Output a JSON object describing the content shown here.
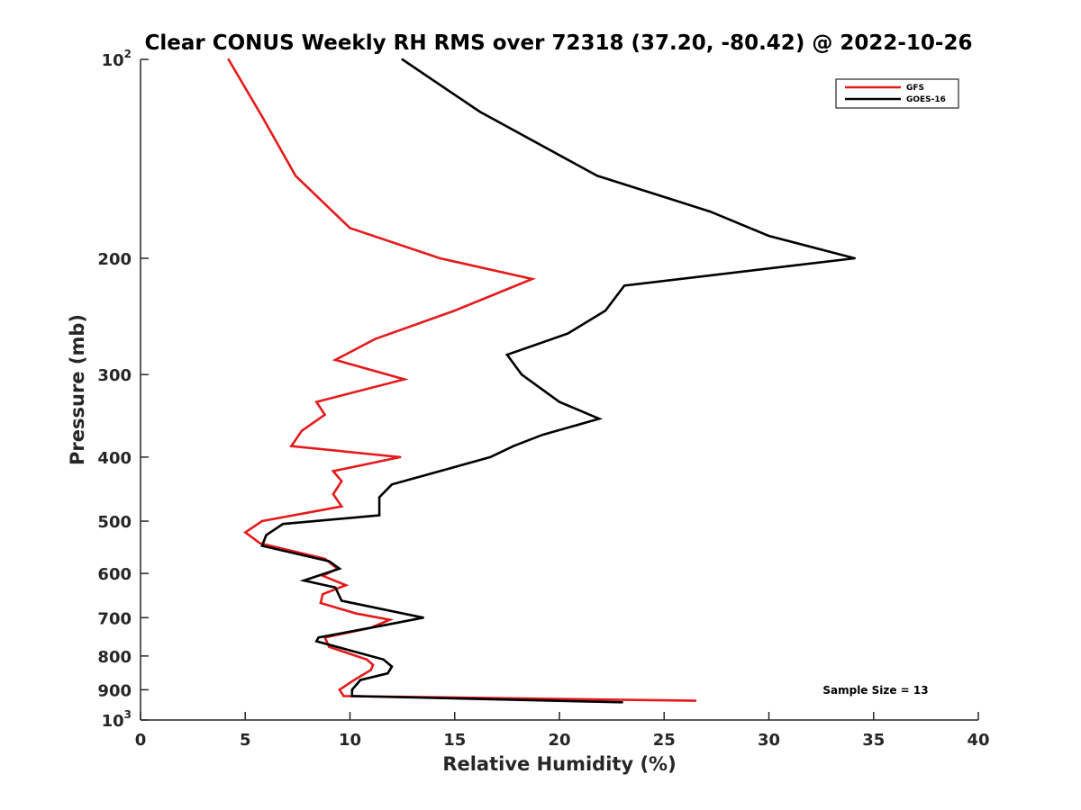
{
  "chart_data": {
    "type": "line",
    "title": "Clear CONUS Weekly RH RMS over 72318 (37.20, -80.42) @ 2022-10-26",
    "xlabel": "Relative Humidity (%)",
    "ylabel": "Pressure (mb)",
    "xlim": [
      0,
      40
    ],
    "ylim": [
      100,
      1000
    ],
    "y_scale": "log",
    "y_reversed": true,
    "x_ticks": [
      "0",
      "5",
      "10",
      "15",
      "20",
      "25",
      "30",
      "35",
      "40"
    ],
    "y_ticks": [
      {
        "value": 100,
        "base": "10",
        "exp": "2"
      },
      {
        "value": 200,
        "base": "200",
        "exp": ""
      },
      {
        "value": 300,
        "base": "300",
        "exp": ""
      },
      {
        "value": 400,
        "base": "400",
        "exp": ""
      },
      {
        "value": 500,
        "base": "500",
        "exp": ""
      },
      {
        "value": 600,
        "base": "600",
        "exp": ""
      },
      {
        "value": 700,
        "base": "700",
        "exp": ""
      },
      {
        "value": 800,
        "base": "800",
        "exp": ""
      },
      {
        "value": 900,
        "base": "900",
        "exp": ""
      },
      {
        "value": 1000,
        "base": "10",
        "exp": "3"
      }
    ],
    "legend_position": "top-right",
    "annotation": "Sample Size = 13",
    "series": [
      {
        "name": "GFS",
        "color": "#e41a1c",
        "points": [
          [
            4.2,
            100
          ],
          [
            5.8,
            122
          ],
          [
            7.4,
            150
          ],
          [
            10.0,
            180
          ],
          [
            14.3,
            200
          ],
          [
            18.7,
            215
          ],
          [
            15.0,
            240
          ],
          [
            11.2,
            265
          ],
          [
            9.3,
            285
          ],
          [
            12.6,
            305
          ],
          [
            8.4,
            330
          ],
          [
            8.8,
            345
          ],
          [
            7.7,
            365
          ],
          [
            7.2,
            385
          ],
          [
            12.4,
            400
          ],
          [
            9.2,
            420
          ],
          [
            9.6,
            435
          ],
          [
            9.2,
            455
          ],
          [
            9.6,
            475
          ],
          [
            5.8,
            500
          ],
          [
            5.0,
            520
          ],
          [
            5.7,
            540
          ],
          [
            8.8,
            570
          ],
          [
            9.4,
            590
          ],
          [
            8.7,
            605
          ],
          [
            9.8,
            625
          ],
          [
            8.7,
            645
          ],
          [
            8.6,
            665
          ],
          [
            10.3,
            690
          ],
          [
            11.9,
            705
          ],
          [
            11.0,
            725
          ],
          [
            8.8,
            750
          ],
          [
            9.0,
            775
          ],
          [
            10.8,
            810
          ],
          [
            11.1,
            825
          ],
          [
            11.0,
            840
          ],
          [
            10.2,
            870
          ],
          [
            9.5,
            900
          ],
          [
            9.7,
            920
          ],
          [
            26.5,
            935
          ]
        ]
      },
      {
        "name": "GOES-16",
        "color": "#000000",
        "points": [
          [
            12.5,
            100
          ],
          [
            16.2,
            120
          ],
          [
            21.8,
            150
          ],
          [
            27.2,
            170
          ],
          [
            30.0,
            185
          ],
          [
            34.1,
            200
          ],
          [
            23.1,
            220
          ],
          [
            22.2,
            240
          ],
          [
            20.4,
            260
          ],
          [
            17.5,
            280
          ],
          [
            18.2,
            300
          ],
          [
            20.0,
            330
          ],
          [
            21.9,
            350
          ],
          [
            19.2,
            370
          ],
          [
            17.8,
            385
          ],
          [
            16.7,
            400
          ],
          [
            12.0,
            440
          ],
          [
            11.4,
            460
          ],
          [
            11.4,
            490
          ],
          [
            6.8,
            505
          ],
          [
            6.0,
            525
          ],
          [
            5.8,
            545
          ],
          [
            9.0,
            575
          ],
          [
            9.5,
            590
          ],
          [
            7.8,
            615
          ],
          [
            9.3,
            630
          ],
          [
            9.6,
            660
          ],
          [
            13.5,
            700
          ],
          [
            11.5,
            720
          ],
          [
            8.5,
            750
          ],
          [
            8.4,
            760
          ],
          [
            11.6,
            810
          ],
          [
            12.0,
            830
          ],
          [
            11.8,
            850
          ],
          [
            10.5,
            870
          ],
          [
            10.1,
            900
          ],
          [
            10.1,
            920
          ],
          [
            23.0,
            940
          ]
        ]
      }
    ]
  }
}
